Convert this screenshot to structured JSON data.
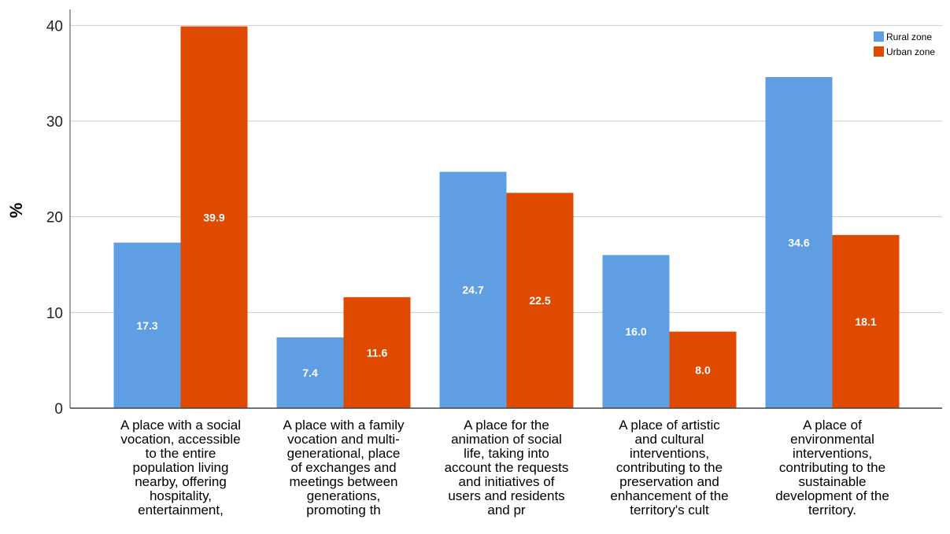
{
  "chart_data": {
    "type": "bar",
    "ylabel": "%",
    "ylim": [
      0,
      42
    ],
    "yticks": [
      0,
      10,
      20,
      30,
      40
    ],
    "grid": true,
    "legend_position": "top-right",
    "categories": [
      [
        "A place with a social",
        "vocation, accessible",
        "to the entire",
        "population living",
        "nearby, offering",
        "hospitality,",
        "entertainment,"
      ],
      [
        "A place with a family",
        "vocation and multi-",
        "generational, place",
        "of exchanges and",
        "meetings between",
        "generations,",
        "promoting th"
      ],
      [
        "A place for the",
        "animation of social",
        "life, taking into",
        "account the requests",
        "and initiatives of",
        "users and residents",
        "and pr"
      ],
      [
        "A place of artistic",
        "and cultural",
        "interventions,",
        "contributing to the",
        "preservation and",
        "enhancement of the",
        "territory's cult"
      ],
      [
        "A place of",
        "environmental",
        "interventions,",
        "contributing to the",
        "sustainable",
        "development of the",
        "territory."
      ]
    ],
    "series": [
      {
        "name": "Rural zone",
        "color": "#5f9ee3",
        "values": [
          17.3,
          7.4,
          24.7,
          16.0,
          34.6
        ],
        "labels": [
          "17.3",
          "7.4",
          "24.7",
          "16.0",
          "34.6"
        ]
      },
      {
        "name": "Urban zone",
        "color": "#e04a00",
        "values": [
          39.9,
          11.6,
          22.5,
          8.0,
          18.1
        ],
        "labels": [
          "39.9",
          "11.6",
          "22.5",
          "8.0",
          "18.1"
        ]
      }
    ]
  }
}
